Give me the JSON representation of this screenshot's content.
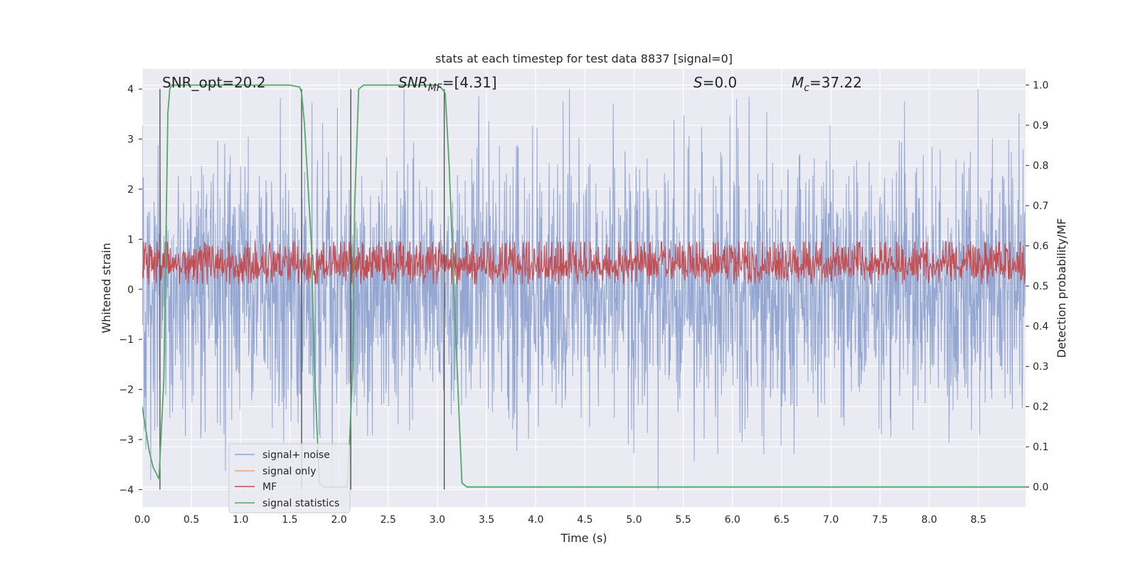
{
  "chart_data": {
    "type": "line",
    "title": "stats at each timestep for test data 8837 [signal=0]",
    "xlabel": "Time (s)",
    "ylabel": "Whitened strain",
    "ylabel_right": "Detection probability/MF",
    "xlim": [
      0.0,
      8.98
    ],
    "ylim": [
      -4.35,
      4.4
    ],
    "ylim_right": [
      -0.05,
      1.04
    ],
    "xticks": [
      "0.0",
      "0.5",
      "1.0",
      "1.5",
      "2.0",
      "2.5",
      "3.0",
      "3.5",
      "4.0",
      "4.5",
      "5.0",
      "5.5",
      "6.0",
      "6.5",
      "7.0",
      "7.5",
      "8.0",
      "8.5"
    ],
    "yticks_left": [
      "4",
      "3",
      "2",
      "1",
      "0",
      "−1",
      "−2",
      "−3",
      "−4"
    ],
    "yticks_right": [
      "1.0",
      "0.9",
      "0.8",
      "0.7",
      "0.6",
      "0.5",
      "0.4",
      "0.3",
      "0.2",
      "0.1",
      "0.0"
    ],
    "grid": true,
    "legend_position": "lower-left",
    "annotations": {
      "snr_opt": "SNR_opt=20.2",
      "snr_mf_label": "SNR",
      "snr_mf_sub": "MF",
      "snr_mf_value": "=[4.31]",
      "s_label": "S",
      "s_value": "=0.0",
      "mc_label": "M",
      "mc_sub": "c",
      "mc_value": "=37.22"
    },
    "series": [
      {
        "name": "signal+ noise",
        "color": "#8fa3d0",
        "note_amplitude_envelope": 4.0
      },
      {
        "name": "signal only",
        "color": "#e8a37a",
        "values": []
      },
      {
        "name": "MF",
        "color": "#c44e52",
        "mean_right_axis": 0.55
      },
      {
        "name": "signal statistics",
        "color": "#55a868",
        "x": [
          0.0,
          0.07,
          0.11,
          0.17,
          0.22,
          0.26,
          0.28,
          0.3,
          0.4,
          1.0,
          1.5,
          1.6,
          1.62,
          1.65,
          1.72,
          1.75,
          1.8,
          1.85,
          1.9,
          2.08,
          2.1,
          2.14,
          2.16,
          2.2,
          2.25,
          2.8,
          3.0,
          3.05,
          3.08,
          3.12,
          3.2,
          3.25,
          3.3,
          8.98
        ],
        "y": [
          0.2,
          0.09,
          0.05,
          0.02,
          0.27,
          0.93,
          0.99,
          1.0,
          1.0,
          1.0,
          1.0,
          0.995,
          0.98,
          0.9,
          0.6,
          0.3,
          0.01,
          0.0,
          0.0,
          0.0,
          0.07,
          0.3,
          0.7,
          0.99,
          1.0,
          1.0,
          1.0,
          0.99,
          0.98,
          0.8,
          0.3,
          0.01,
          0.0,
          0.0
        ]
      }
    ],
    "vertical_markers": {
      "color": "#555555",
      "x": [
        0.18,
        1.62,
        2.12,
        3.07
      ]
    }
  }
}
